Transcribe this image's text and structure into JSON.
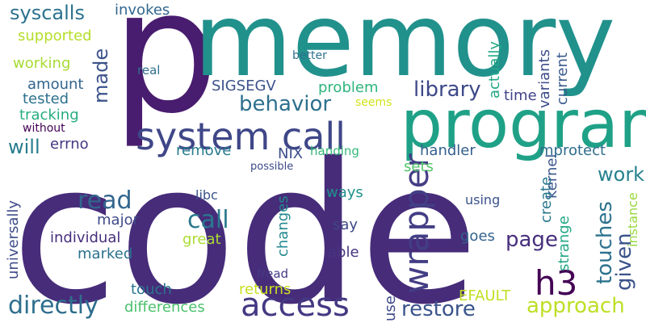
{
  "words": [
    {
      "text": "code",
      "color": "#472c7a"
    },
    {
      "text": "p",
      "color": "#481c6e"
    },
    {
      "text": "memory",
      "color": "#21918c"
    },
    {
      "text": "program",
      "color": "#1fa187"
    },
    {
      "text": "system call",
      "color": "#3f4788"
    },
    {
      "text": "access",
      "color": "#443983"
    },
    {
      "text": "wrapper",
      "color": "#433e85"
    },
    {
      "text": "h3",
      "color": "#440154"
    },
    {
      "text": "directly",
      "color": "#2e6e8e"
    },
    {
      "text": "read",
      "color": "#31668e"
    },
    {
      "text": "call",
      "color": "#2a788e"
    },
    {
      "text": "page",
      "color": "#472f7d"
    },
    {
      "text": "restore",
      "color": "#3a548c"
    },
    {
      "text": "approach",
      "color": "#bddf26"
    },
    {
      "text": "library",
      "color": "#3e4989"
    },
    {
      "text": "behavior",
      "color": "#2d708e"
    },
    {
      "text": "touches",
      "color": "#2c728e"
    },
    {
      "text": "given",
      "color": "#3b528b"
    },
    {
      "text": "work",
      "color": "#26828e"
    },
    {
      "text": "syscalls",
      "color": "#2c728e"
    },
    {
      "text": "will",
      "color": "#287d8e"
    },
    {
      "text": "made",
      "color": "#3b528b"
    },
    {
      "text": "handler",
      "color": "#35608d"
    },
    {
      "text": "mprotect",
      "color": "#2f6c8e"
    },
    {
      "text": "kernel",
      "color": "#39568c"
    },
    {
      "text": "variants",
      "color": "#3e4c8a"
    },
    {
      "text": "actually",
      "color": "#22a884"
    },
    {
      "text": "current",
      "color": "#38598c"
    },
    {
      "text": "invokes",
      "color": "#31668e"
    },
    {
      "text": "supported",
      "color": "#b5de2b"
    },
    {
      "text": "working",
      "color": "#a8db34"
    },
    {
      "text": "amount",
      "color": "#32658e"
    },
    {
      "text": "tested",
      "color": "#2d718e"
    },
    {
      "text": "tracking",
      "color": "#27ad81"
    },
    {
      "text": "without",
      "color": "#440154"
    },
    {
      "text": "errno",
      "color": "#453781"
    },
    {
      "text": "SIGSEGV",
      "color": "#3b528b"
    },
    {
      "text": "problem",
      "color": "#2fb47c"
    },
    {
      "text": "time",
      "color": "#414487"
    },
    {
      "text": "remove",
      "color": "#287c8e"
    },
    {
      "text": "NIX",
      "color": "#3d4e8a"
    },
    {
      "text": "sets",
      "color": "#52c569"
    },
    {
      "text": "create",
      "color": "#2a788e"
    },
    {
      "text": "strange",
      "color": "#22a884"
    },
    {
      "text": "instance",
      "color": "#98d83e"
    },
    {
      "text": "major",
      "color": "#3e4a89"
    },
    {
      "text": "individual",
      "color": "#472f7d"
    },
    {
      "text": "marked",
      "color": "#2c728e"
    },
    {
      "text": "great",
      "color": "#aadc32"
    },
    {
      "text": "changes",
      "color": "#23898e"
    },
    {
      "text": "ways",
      "color": "#21918c"
    },
    {
      "text": "say",
      "color": "#3f4788"
    },
    {
      "text": "able",
      "color": "#463480"
    },
    {
      "text": "goes",
      "color": "#33628d"
    },
    {
      "text": "using",
      "color": "#3b528b"
    },
    {
      "text": "libc",
      "color": "#3b528b"
    },
    {
      "text": "touch",
      "color": "#2a768e"
    },
    {
      "text": "returns",
      "color": "#c8e020"
    },
    {
      "text": "differences",
      "color": "#4ac16d"
    },
    {
      "text": "fread",
      "color": "#443a83"
    },
    {
      "text": "use",
      "color": "#3e4989"
    },
    {
      "text": "EFAULT",
      "color": "#c2df23"
    },
    {
      "text": "universally",
      "color": "#3e4c8a"
    },
    {
      "text": "real",
      "color": "#2d708e"
    },
    {
      "text": "better",
      "color": "#2c728e"
    },
    {
      "text": "seems",
      "color": "#d2e21b"
    },
    {
      "text": "handing",
      "color": "#35b779"
    },
    {
      "text": "possible",
      "color": "#3e4a89"
    }
  ]
}
